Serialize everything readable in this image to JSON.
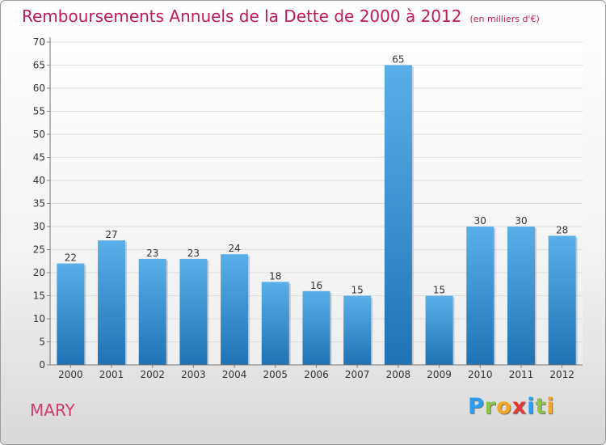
{
  "chart_data": {
    "type": "bar",
    "title": "Remboursements Annuels de la Dette de 2000 à 2012",
    "subtitle": "(en milliers d'€)",
    "categories": [
      "2000",
      "2001",
      "2002",
      "2003",
      "2004",
      "2005",
      "2006",
      "2007",
      "2008",
      "2009",
      "2010",
      "2011",
      "2012"
    ],
    "values": [
      22,
      27,
      23,
      23,
      24,
      18,
      16,
      15,
      65,
      15,
      30,
      30,
      28
    ],
    "ylim": [
      0,
      70
    ],
    "yticks": [
      0,
      5,
      10,
      15,
      20,
      25,
      30,
      35,
      40,
      45,
      50,
      55,
      60,
      65,
      70
    ],
    "grid": true,
    "bar_color": "#2e86cc"
  },
  "footer": {
    "city": "MARY",
    "brand_letters": [
      {
        "char": "P",
        "color": "#2a9df4"
      },
      {
        "char": "r",
        "color": "#8bc34a"
      },
      {
        "char": "o",
        "color": "#f5a623"
      },
      {
        "char": "x",
        "color": "#e53935"
      },
      {
        "char": "i",
        "color": "#2a9df4"
      },
      {
        "char": "t",
        "color": "#8bc34a"
      },
      {
        "char": "i",
        "color": "#f5a623"
      }
    ]
  }
}
